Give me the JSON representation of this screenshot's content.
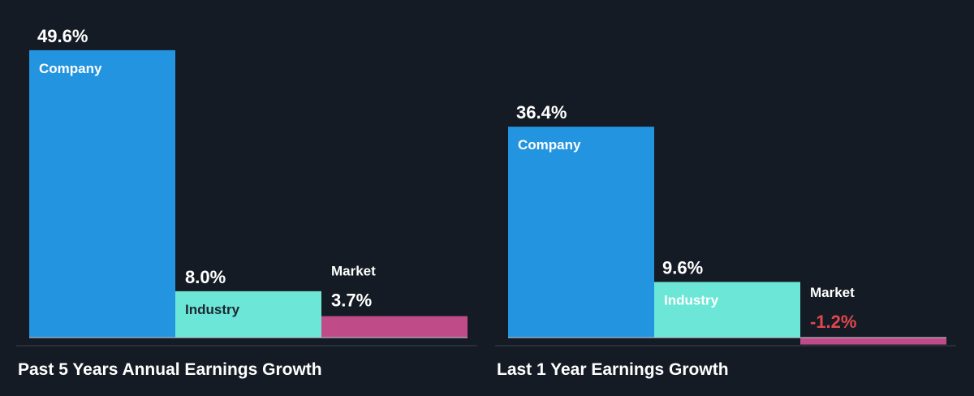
{
  "chart_data": [
    {
      "type": "bar",
      "title": "Past 5 Years Annual Earnings Growth",
      "categories": [
        "Company",
        "Industry",
        "Market"
      ],
      "values": [
        49.6,
        8.0,
        3.7
      ],
      "value_labels": [
        "49.6%",
        "8.0%",
        "3.7%"
      ],
      "xlabel": "",
      "ylabel": "",
      "grid": false,
      "legend": "none",
      "colors": [
        "#2394e0",
        "#6ce6d6",
        "#bf4b89"
      ],
      "negative_label_color": "#e0474c"
    },
    {
      "type": "bar",
      "title": "Last 1 Year Earnings Growth",
      "categories": [
        "Company",
        "Industry",
        "Market"
      ],
      "values": [
        36.4,
        9.6,
        -1.2
      ],
      "value_labels": [
        "36.4%",
        "9.6%",
        "-1.2%"
      ],
      "xlabel": "",
      "ylabel": "",
      "grid": false,
      "legend": "none",
      "colors": [
        "#2394e0",
        "#6ce6d6",
        "#bf4b89"
      ],
      "negative_label_color": "#e0474c"
    }
  ],
  "theme": {
    "background": "#151b24",
    "text": "#ffffff",
    "dark_text": "#1c2733",
    "axis": "#c9ced6"
  }
}
